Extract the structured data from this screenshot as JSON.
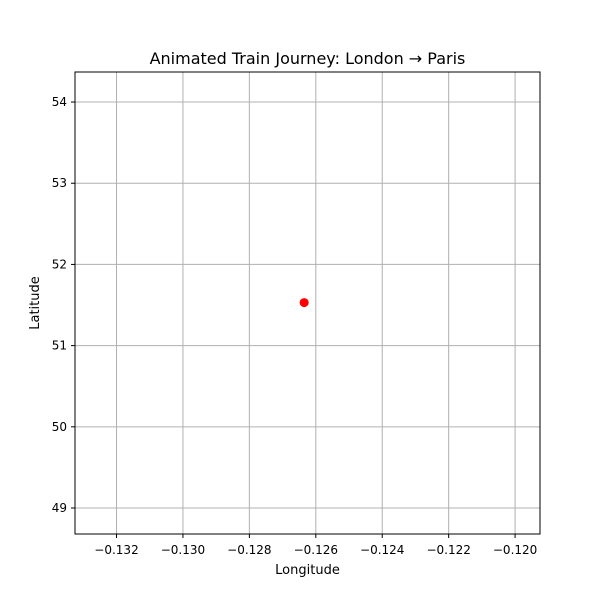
{
  "chart_data": {
    "type": "scatter",
    "title": "Animated Train Journey: London → Paris",
    "xlabel": "Longitude",
    "ylabel": "Latitude",
    "xlim": [
      -0.13325,
      -0.11925
    ],
    "ylim": [
      48.68,
      54.37
    ],
    "xticks": [
      -0.132,
      -0.13,
      -0.128,
      -0.126,
      -0.124,
      -0.122,
      -0.12
    ],
    "xtick_labels": [
      "−0.132",
      "−0.130",
      "−0.128",
      "−0.126",
      "−0.124",
      "−0.122",
      "−0.120"
    ],
    "yticks": [
      49,
      50,
      51,
      52,
      53,
      54
    ],
    "ytick_labels": [
      "49",
      "50",
      "51",
      "52",
      "53",
      "54"
    ],
    "grid": true,
    "point_color": "#ff0000",
    "points": [
      {
        "x": -0.12635,
        "y": 51.53
      }
    ]
  }
}
